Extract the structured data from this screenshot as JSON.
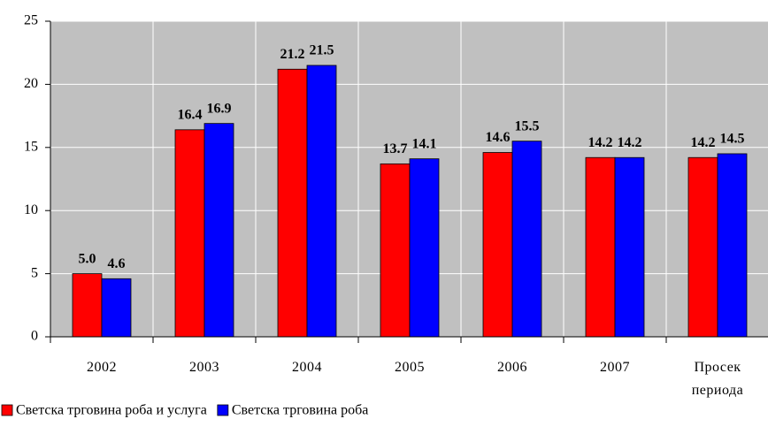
{
  "chart_data": {
    "type": "bar",
    "categories": [
      "2002",
      "2003",
      "2004",
      "2005",
      "2006",
      "2007",
      "Просек периода"
    ],
    "series": [
      {
        "name": "Светска трговина роба и услуга",
        "color": "#ff0000",
        "values": [
          5.0,
          16.4,
          21.2,
          13.7,
          14.6,
          14.2,
          14.2
        ],
        "value_labels": [
          "5.0",
          "16.4",
          "21.2",
          "13.7",
          "14.6",
          "14.2",
          "14.2"
        ]
      },
      {
        "name": "Светска трговина роба",
        "color": "#0000ff",
        "values": [
          4.6,
          16.9,
          21.5,
          14.1,
          15.5,
          14.2,
          14.5
        ],
        "value_labels": [
          "4.6",
          "16.9",
          "21.5",
          "14.1",
          "15.5",
          "14.2",
          "14.5"
        ]
      }
    ],
    "ylim": [
      0,
      25
    ],
    "yticks": [
      0,
      5,
      10,
      15,
      20,
      25
    ],
    "grid": true,
    "legend": "bottom",
    "plot_background": "#c0c0c0"
  }
}
